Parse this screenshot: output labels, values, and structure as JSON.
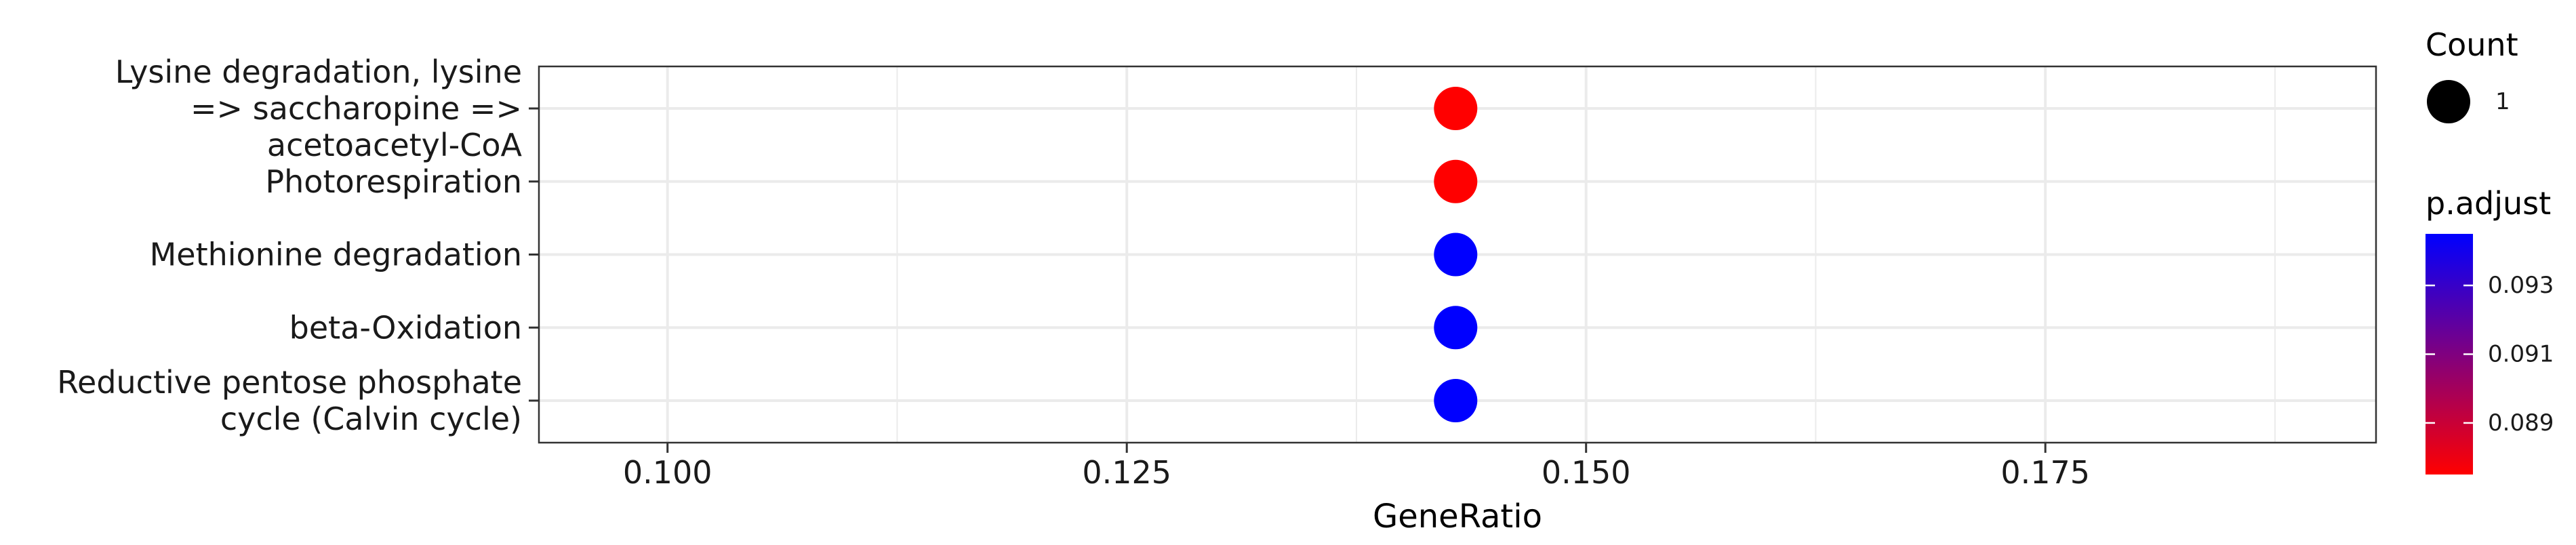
{
  "chart_data": {
    "type": "scatter",
    "title": "",
    "xlabel": "GeneRatio",
    "ylabel": "",
    "xlim": [
      0.093,
      0.193
    ],
    "x_ticks": [
      0.1,
      0.125,
      0.15,
      0.175
    ],
    "x_tick_labels": [
      "0.100",
      "0.125",
      "0.150",
      "0.175"
    ],
    "grid": true,
    "categories": [
      "Lysine degradation, lysine => saccharopine => acetoacetyl-CoA",
      "Photorespiration",
      "Methionine degradation",
      "beta-Oxidation",
      "Reductive pentose phosphate cycle (Calvin cycle)"
    ],
    "category_label_lines": [
      [
        "Lysine degradation, lysine",
        "=> saccharopine =>",
        "acetoacetyl-CoA"
      ],
      [
        "Photorespiration"
      ],
      [
        "Methionine degradation"
      ],
      [
        "beta-Oxidation"
      ],
      [
        "Reductive pentose phosphate",
        "cycle (Calvin cycle)"
      ]
    ],
    "points": [
      {
        "category": "Lysine degradation, lysine => saccharopine => acetoacetyl-CoA",
        "x": 0.1429,
        "count": 1,
        "p_adjust": 0.0875,
        "color": "#ff0000"
      },
      {
        "category": "Photorespiration",
        "x": 0.1429,
        "count": 1,
        "p_adjust": 0.0875,
        "color": "#ff0000"
      },
      {
        "category": "Methionine degradation",
        "x": 0.1429,
        "count": 1,
        "p_adjust": 0.0945,
        "color": "#0000ff"
      },
      {
        "category": "beta-Oxidation",
        "x": 0.1429,
        "count": 1,
        "p_adjust": 0.0945,
        "color": "#0000ff"
      },
      {
        "category": "Reductive pentose phosphate cycle (Calvin cycle)",
        "x": 0.1429,
        "count": 1,
        "p_adjust": 0.0945,
        "color": "#0000ff"
      }
    ],
    "legend_count": {
      "title": "Count",
      "entries": [
        {
          "label": "1",
          "value": 1
        }
      ]
    },
    "legend_color": {
      "title": "p.adjust",
      "low_color": "#ff0000",
      "high_color": "#0000ff",
      "range": [
        0.0875,
        0.0945
      ],
      "ticks": [
        0.089,
        0.091,
        0.093
      ],
      "tick_labels": [
        "0.089",
        "0.091",
        "0.093"
      ]
    },
    "legend_placement": "right"
  }
}
